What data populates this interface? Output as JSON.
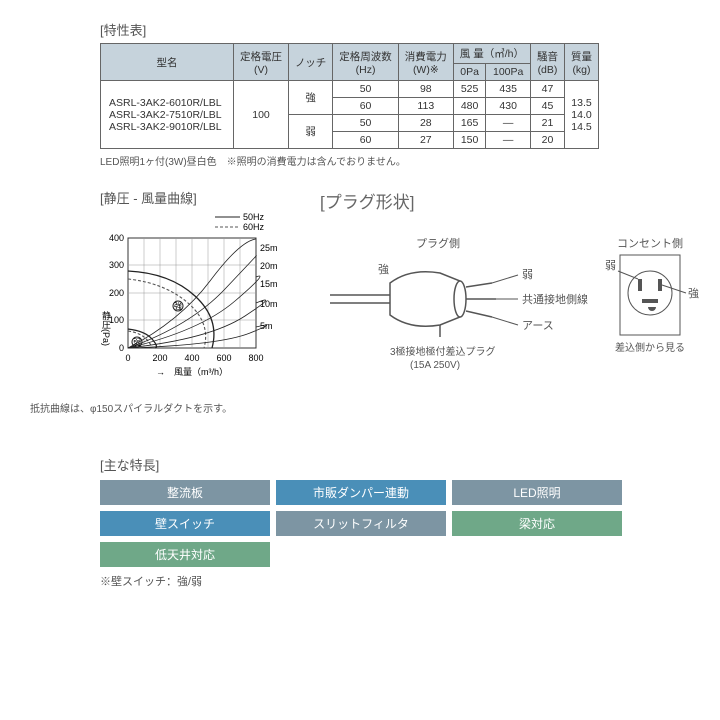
{
  "spec": {
    "title": "[特性表]",
    "headers": {
      "model": "型名",
      "voltage": "定格電圧\n(V)",
      "notch": "ノッチ",
      "freq": "定格周波数\n(Hz)",
      "power": "消費電力\n(W)※",
      "airflow": "風 量（㎥/h）",
      "airflow_0": "0Pa",
      "airflow_100": "100Pa",
      "noise": "騒音\n(dB)",
      "mass": "質量\n(kg)"
    },
    "voltage_value": "100",
    "notch_hi": "強",
    "notch_lo": "弱",
    "rows": [
      {
        "freq": "50",
        "power": "98",
        "af0": "525",
        "af100": "435",
        "noise": "47"
      },
      {
        "freq": "60",
        "power": "113",
        "af0": "480",
        "af100": "430",
        "noise": "45"
      },
      {
        "freq": "50",
        "power": "28",
        "af0": "165",
        "af100": "—",
        "noise": "21"
      },
      {
        "freq": "60",
        "power": "27",
        "af0": "150",
        "af100": "—",
        "noise": "20"
      }
    ],
    "models": [
      "ASRL-3AK2-6010R/LBL",
      "ASRL-3AK2-7510R/LBL",
      "ASRL-3AK2-9010R/LBL"
    ],
    "mass": [
      "13.5",
      "14.0",
      "14.5"
    ],
    "note": "LED照明1ヶ付(3W)昼白色　※照明の消費電力は含んでおりません。"
  },
  "chart": {
    "title": "[静圧 - 風量曲線]",
    "legend_50": "50Hz",
    "legend_60": "60Hz",
    "ylabel": "静圧(Pa)",
    "xlabel": "風量（m³/h）",
    "yticks": [
      "0",
      "100",
      "200",
      "300",
      "400"
    ],
    "xticks": [
      "0",
      "200",
      "400",
      "600",
      "800"
    ],
    "duct_labels": [
      "25m",
      "20m",
      "15m",
      "10m",
      "5m"
    ],
    "marker_hi": "強",
    "marker_lo": "弱",
    "ylim": [
      0,
      400
    ],
    "xlim": [
      0,
      800
    ],
    "axis_color": "#333",
    "curve_color": "#222",
    "dash_color": "#555",
    "note": "抵抗曲線は、φ150スパイラルダクトを示す。"
  },
  "plug": {
    "title": "[プラグ形状]",
    "labels": {
      "plug_side": "プラグ側",
      "outlet_side": "コンセント側",
      "hi": "強",
      "lo": "弱",
      "common": "共通接地側線",
      "earth": "アース",
      "plug_desc1": "3極接地極付差込プラグ",
      "plug_desc2": "(15A 250V)",
      "outlet_desc": "差込側から見る"
    },
    "colors": {
      "line": "#555",
      "fill": "#555",
      "light": "#eee"
    }
  },
  "features": {
    "title": "[主な特長]",
    "cells": [
      {
        "label": "整流板",
        "class": "c-gray"
      },
      {
        "label": "市販ダンパー連動",
        "class": "c-blue"
      },
      {
        "label": "LED照明",
        "class": "c-gray"
      },
      {
        "label": "壁スイッチ",
        "class": "c-blue"
      },
      {
        "label": "スリットフィルタ",
        "class": "c-gray"
      },
      {
        "label": "梁対応",
        "class": "c-green"
      },
      {
        "label": "低天井対応",
        "class": "c-green"
      }
    ],
    "note": "※壁スイッチ：強/弱"
  }
}
